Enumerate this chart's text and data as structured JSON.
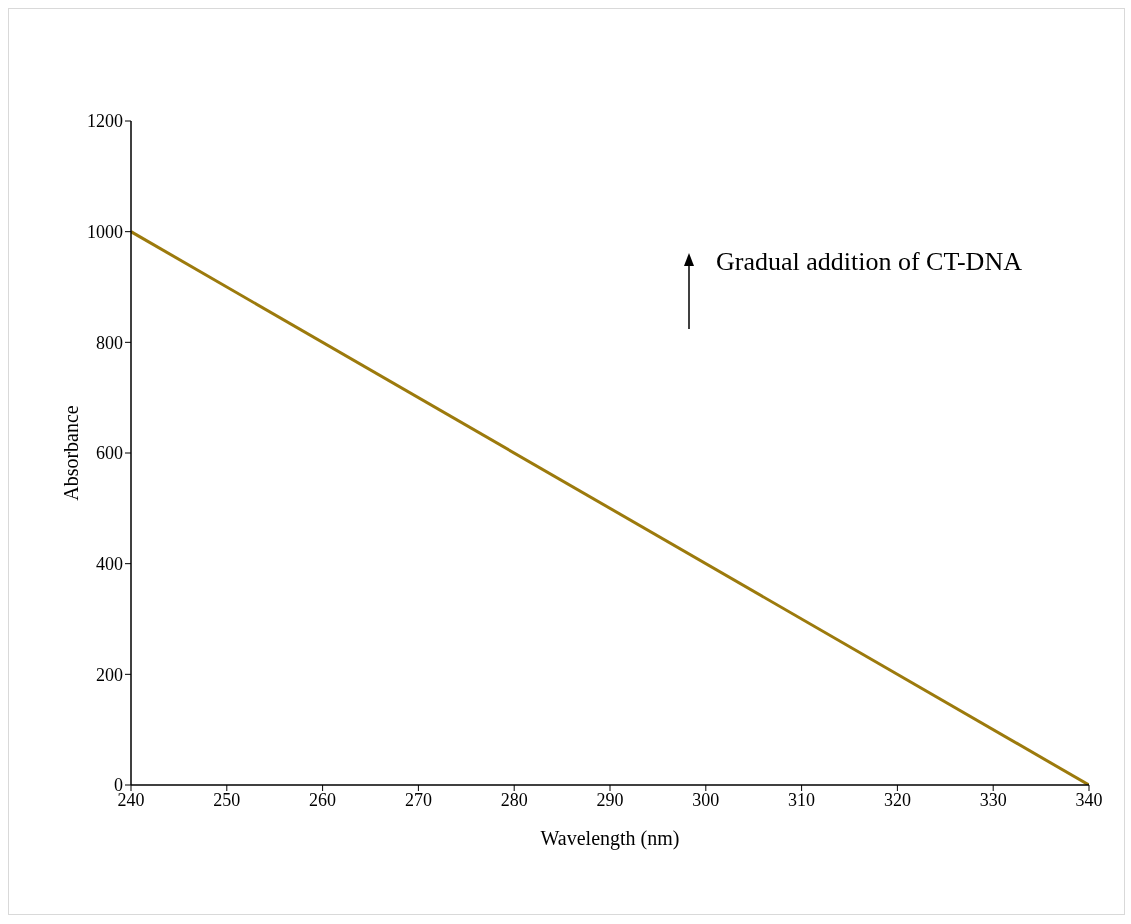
{
  "chart_data": {
    "type": "line",
    "xlabel": "Wavelength (nm)",
    "ylabel": "Absorbance",
    "x": [
      240,
      340
    ],
    "series": [
      {
        "color": "#9c7a0c",
        "values": [
          1000,
          0
        ]
      }
    ],
    "xlim": [
      240,
      340
    ],
    "xticks": [
      240,
      250,
      260,
      270,
      280,
      290,
      300,
      310,
      320,
      330,
      340
    ],
    "ylim": [
      0,
      1200
    ],
    "yticks": [
      0,
      200,
      400,
      600,
      800,
      1000,
      1200
    ],
    "grid": false,
    "legend": false,
    "marker": "none",
    "line_style": "solid",
    "annotations": [
      "Gradual addition of CT-DNA"
    ]
  }
}
